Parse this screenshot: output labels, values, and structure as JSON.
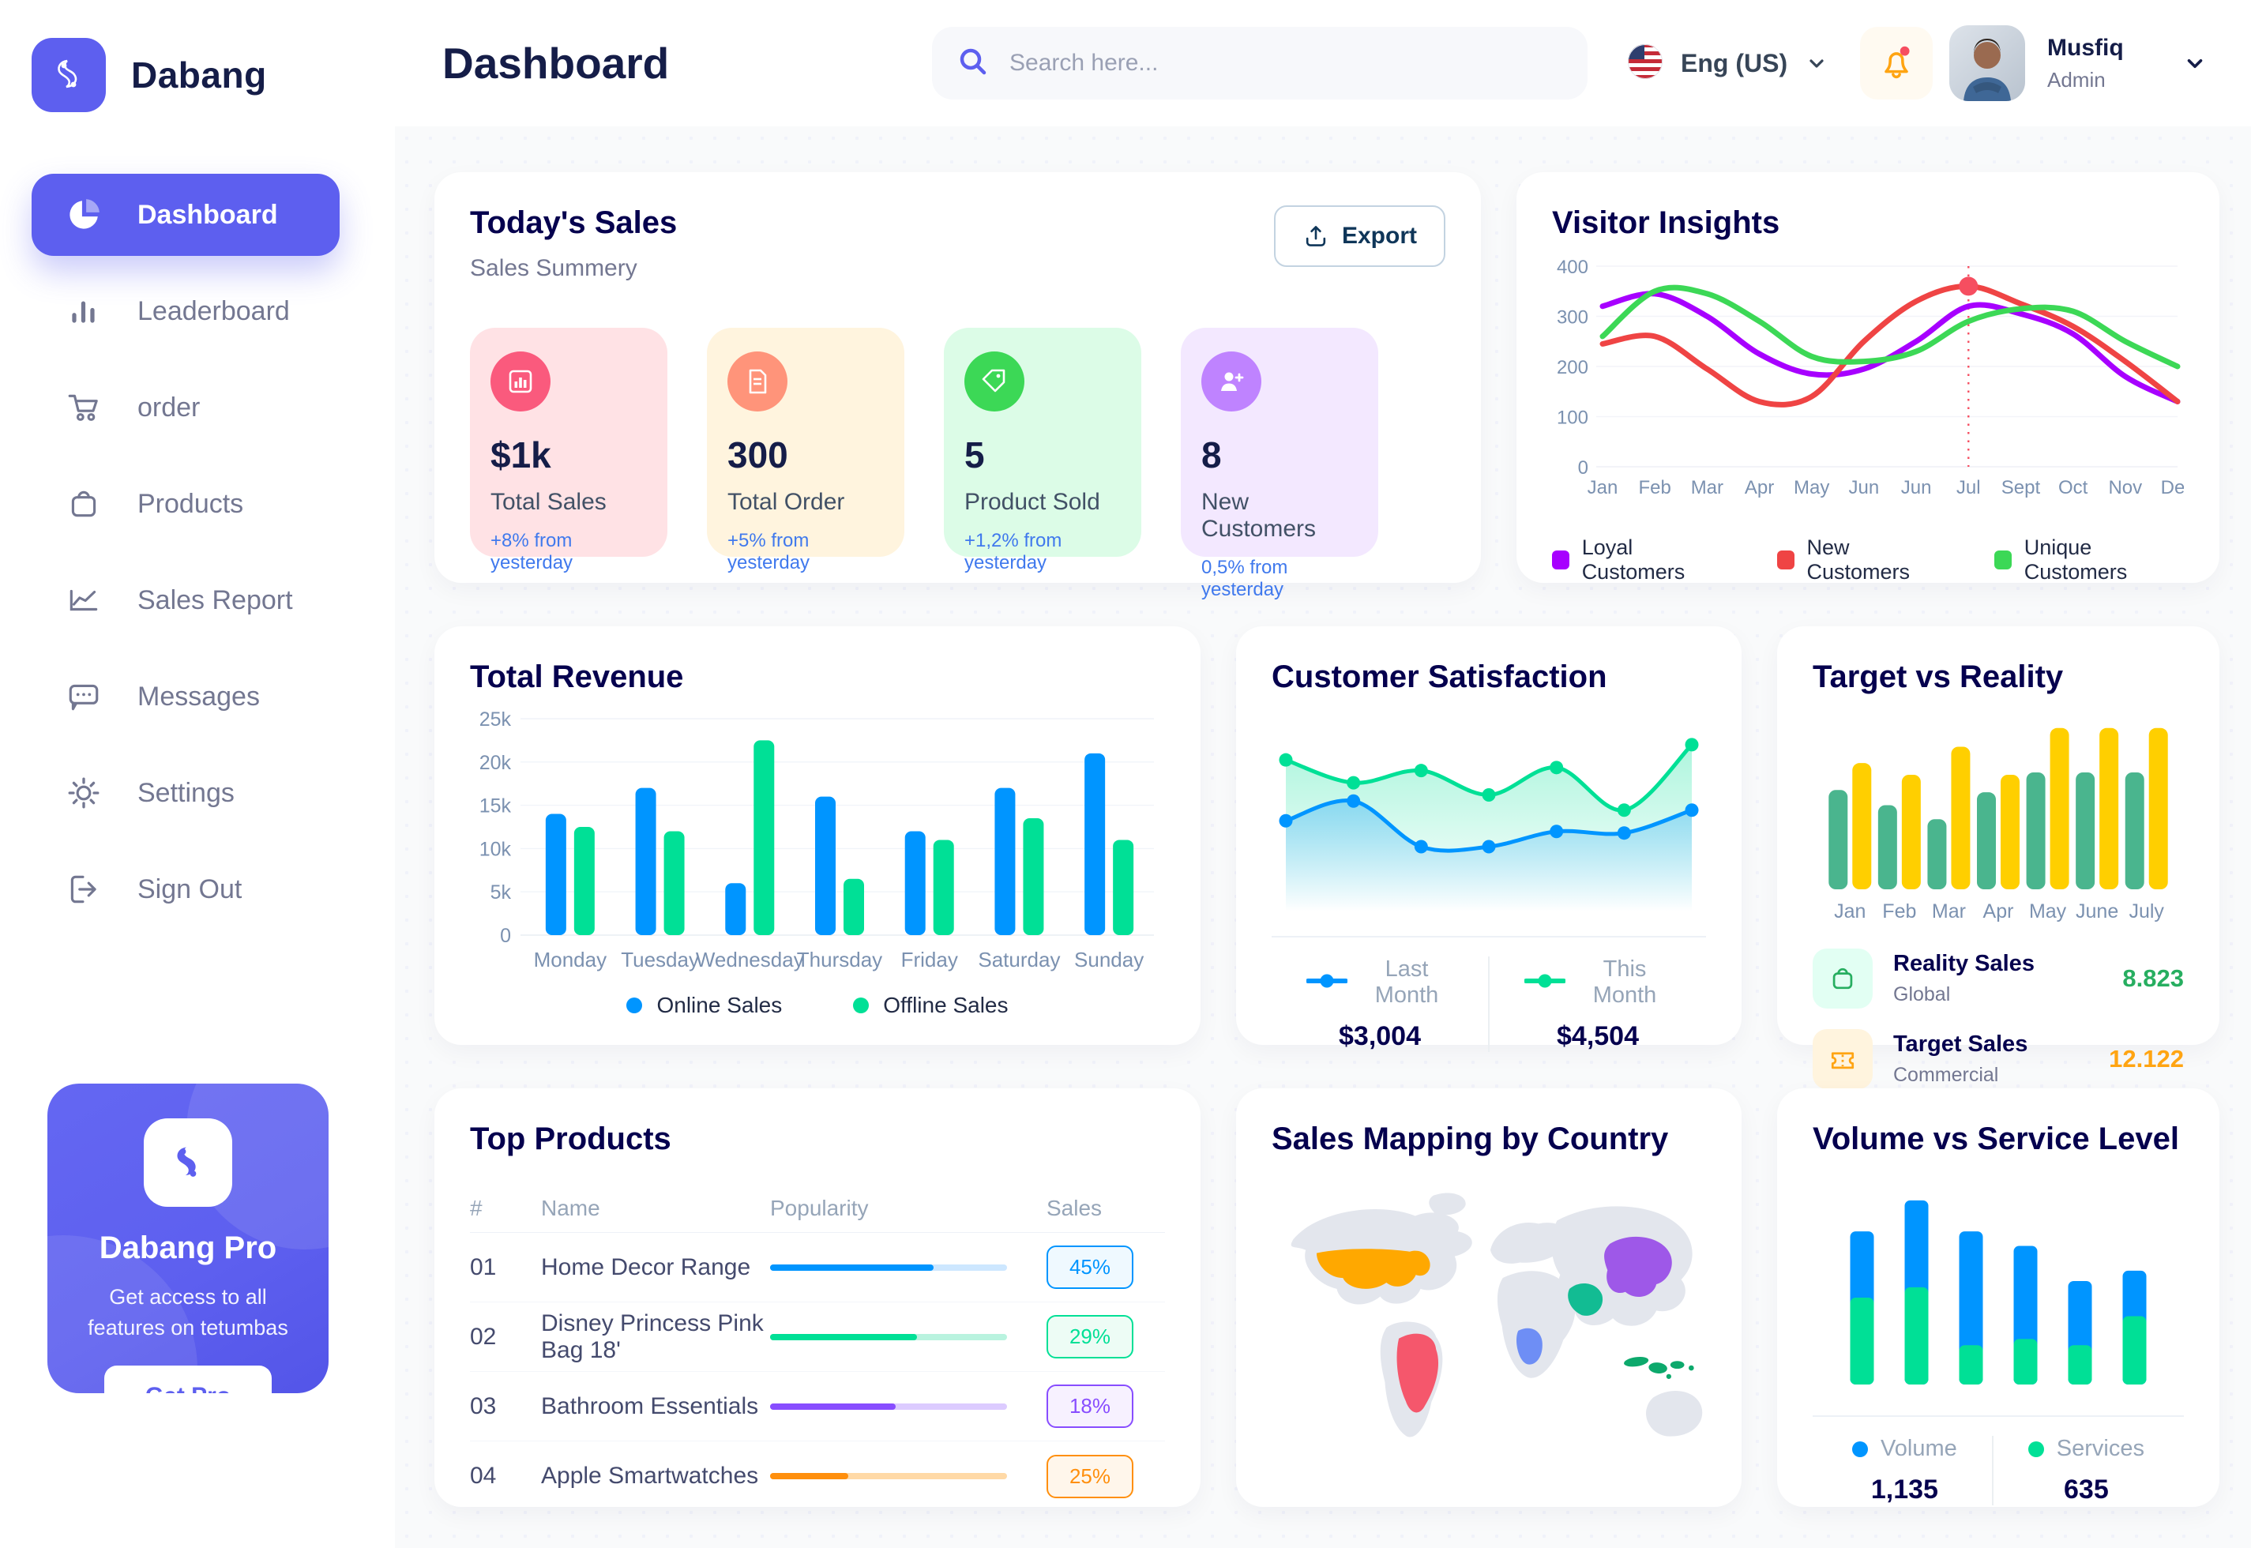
{
  "app": {
    "brand": "Dabang"
  },
  "header": {
    "page_title": "Dashboard",
    "search_placeholder": "Search here...",
    "language": "Eng (US)",
    "user_name": "Musfiq",
    "user_role": "Admin"
  },
  "sidebar": {
    "items": [
      {
        "label": "Dashboard",
        "icon": "pie-chart",
        "active": true
      },
      {
        "label": "Leaderboard",
        "icon": "bar-chart",
        "active": false
      },
      {
        "label": "order",
        "icon": "cart",
        "active": false
      },
      {
        "label": "Products",
        "icon": "bag",
        "active": false
      },
      {
        "label": "Sales Report",
        "icon": "line-chart",
        "active": false
      },
      {
        "label": "Messages",
        "icon": "message",
        "active": false
      },
      {
        "label": "Settings",
        "icon": "gear",
        "active": false
      },
      {
        "label": "Sign Out",
        "icon": "sign-out",
        "active": false
      }
    ],
    "promo": {
      "title": "Dabang Pro",
      "description": "Get access to all features on tetumbas",
      "cta": "Get Pro"
    }
  },
  "today_sales": {
    "title": "Today's Sales",
    "subtitle": "Sales Summery",
    "export_label": "Export",
    "cards": [
      {
        "value": "$1k",
        "label": "Total Sales",
        "delta": "+8% from yesterday",
        "bg": "#FFE2E5",
        "icon_bg": "#FA5A7D",
        "icon": "chart-bars"
      },
      {
        "value": "300",
        "label": "Total Order",
        "delta": "+5% from yesterday",
        "bg": "#FFF4DE",
        "icon_bg": "#FF947A",
        "icon": "file-list"
      },
      {
        "value": "5",
        "label": "Product Sold",
        "delta": "+1,2% from yesterday",
        "bg": "#DCFCE7",
        "icon_bg": "#3CD856",
        "icon": "tag"
      },
      {
        "value": "8",
        "label": "New Customers",
        "delta": "0,5% from yesterday",
        "bg": "#F3E8FF",
        "icon_bg": "#BF83FF",
        "icon": "user-plus"
      }
    ]
  },
  "charts": {
    "visitor_insights": {
      "type": "line",
      "title": "Visitor Insights",
      "x_labels": [
        "Jan",
        "Feb",
        "Mar",
        "Apr",
        "May",
        "Jun",
        "Jun",
        "Jul",
        "Sept",
        "Oct",
        "Nov",
        "Des"
      ],
      "y_ticks": [
        0,
        100,
        200,
        300,
        400
      ],
      "ylim": [
        0,
        400
      ],
      "series": [
        {
          "name": "Loyal Customers",
          "color": "#A700FF",
          "values": [
            320,
            345,
            300,
            225,
            185,
            195,
            250,
            320,
            305,
            265,
            180,
            130
          ]
        },
        {
          "name": "New Customers",
          "color": "#EF4444",
          "values": [
            245,
            260,
            195,
            130,
            140,
            250,
            330,
            360,
            325,
            280,
            210,
            130
          ]
        },
        {
          "name": "Unique Customers",
          "color": "#3CD856",
          "values": [
            260,
            350,
            345,
            290,
            220,
            210,
            230,
            290,
            315,
            310,
            250,
            200
          ]
        }
      ],
      "marker": {
        "series": "New Customers",
        "x_index": 7,
        "value": 360,
        "color": "#F64E60"
      }
    },
    "total_revenue": {
      "type": "bar",
      "title": "Total Revenue",
      "categories": [
        "Monday",
        "Tuesday",
        "Wednesday",
        "Thursday",
        "Friday",
        "Saturday",
        "Sunday"
      ],
      "y_tick_labels": [
        "0",
        "5k",
        "10k",
        "15k",
        "20k",
        "25k"
      ],
      "ylim": [
        0,
        25000
      ],
      "series": [
        {
          "name": "Online Sales",
          "color": "#0095FF",
          "values": [
            14000,
            17000,
            6000,
            16000,
            12000,
            17000,
            21000
          ]
        },
        {
          "name": "Offline Sales",
          "color": "#00E096",
          "values": [
            12500,
            12000,
            22500,
            6500,
            11000,
            13500,
            11000
          ]
        }
      ]
    },
    "customer_satisfaction": {
      "type": "area",
      "title": "Customer Satisfaction",
      "ylim": [
        0,
        110
      ],
      "series": [
        {
          "name": "Last Month",
          "total": "$3,004",
          "color": "#0095FF",
          "values": [
            45,
            58,
            28,
            28,
            38,
            37,
            52
          ]
        },
        {
          "name": "This Month",
          "total": "$4,504",
          "color": "#00E096",
          "values": [
            85,
            70,
            78,
            62,
            80,
            52,
            95
          ]
        }
      ]
    },
    "target_vs_reality": {
      "type": "bar",
      "title": "Target vs Reality",
      "categories": [
        "Jan",
        "Feb",
        "Mar",
        "Apr",
        "May",
        "June",
        "July"
      ],
      "ylim": [
        0,
        15
      ],
      "series": [
        {
          "name": "Reality Sales",
          "subtitle": "Global",
          "color": "#4AB58E",
          "value_label": "8.823",
          "value_color": "#27AE60",
          "icon_bg": "#E2FFF3",
          "icon": "bag",
          "values": [
            8.5,
            7.2,
            6.0,
            8.3,
            10,
            10,
            10
          ]
        },
        {
          "name": "Target Sales",
          "subtitle": "Commercial",
          "color": "#FFCF00",
          "value_label": "12.122",
          "value_color": "#FFA412",
          "icon_bg": "#FFF4DE",
          "icon": "ticket",
          "values": [
            10.8,
            9.8,
            12.2,
            9.8,
            13.8,
            13.8,
            13.8
          ]
        }
      ]
    },
    "volume_service": {
      "type": "stacked-bar",
      "title": "Volume vs Service Level",
      "ylim": [
        0,
        1000
      ],
      "series": [
        {
          "name": "Volume",
          "total": "1,135",
          "color": "#0095FF",
          "values": [
            320,
            420,
            550,
            450,
            310,
            220
          ]
        },
        {
          "name": "Services",
          "total": "635",
          "color": "#00E096",
          "values": [
            420,
            470,
            190,
            220,
            190,
            330
          ]
        }
      ]
    }
  },
  "top_products": {
    "title": "Top Products",
    "headers": [
      "#",
      "Name",
      "Popularity",
      "Sales"
    ],
    "rows": [
      {
        "num": "01",
        "name": "Home Decor Range",
        "progress": 69,
        "sales": "45%",
        "color": "#0095FF",
        "track": "#CDE7FF",
        "badge_bg": "#EFF9FF"
      },
      {
        "num": "02",
        "name": "Disney Princess Pink Bag 18'",
        "progress": 62,
        "sales": "29%",
        "color": "#00E096",
        "track": "#B9F3DF",
        "badge_bg": "#EDFCF5"
      },
      {
        "num": "03",
        "name": "Bathroom Essentials",
        "progress": 53,
        "sales": "18%",
        "color": "#884DFF",
        "track": "#DCCBFF",
        "badge_bg": "#F7F1FF"
      },
      {
        "num": "04",
        "name": "Apple Smartwatches",
        "progress": 33,
        "sales": "25%",
        "color": "#FF8F0D",
        "track": "#FFD9A6",
        "badge_bg": "#FFF6EB"
      }
    ]
  },
  "sales_map": {
    "title": "Sales Mapping by Country",
    "countries": [
      {
        "name": "United States",
        "color": "#FFA800"
      },
      {
        "name": "Brazil",
        "color": "#F5576C"
      },
      {
        "name": "Saudi Arabia",
        "color": "#12BC93"
      },
      {
        "name": "DR Congo",
        "color": "#6E8EF5"
      },
      {
        "name": "China",
        "color": "#9E58E8"
      },
      {
        "name": "Indonesia",
        "color": "#0DA96C"
      }
    ]
  }
}
